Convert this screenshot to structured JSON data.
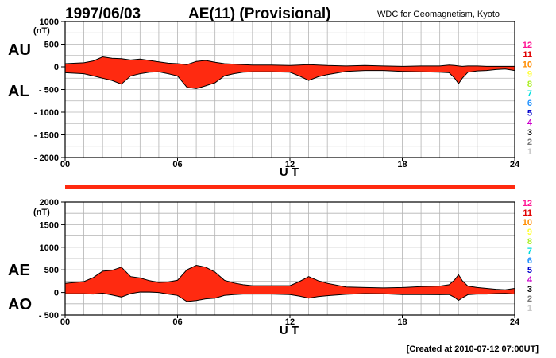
{
  "header": {
    "date": "1997/06/03",
    "title": "AE(11) (Provisional)",
    "source": "WDC for Geomagnetism, Kyoto"
  },
  "footer": {
    "created": "[Created at 2010-07-12 07:00UT]"
  },
  "colors": {
    "fill": "#ff2a10",
    "grid": "#b4b4b4",
    "axis": "#000000",
    "coverage_bar": "#ff2a10"
  },
  "station_legend": [
    {
      "label": "12",
      "color": "#ff1493"
    },
    {
      "label": "11",
      "color": "#e00000"
    },
    {
      "label": "10",
      "color": "#ff8c00"
    },
    {
      "label": "9",
      "color": "#ffff33"
    },
    {
      "label": "8",
      "color": "#aaee22"
    },
    {
      "label": "7",
      "color": "#00dddd"
    },
    {
      "label": "6",
      "color": "#1e90ff"
    },
    {
      "label": "5",
      "color": "#0000cc"
    },
    {
      "label": "4",
      "color": "#cc00cc"
    },
    {
      "label": "3",
      "color": "#000000"
    },
    {
      "label": "2",
      "color": "#777777"
    },
    {
      "label": "1",
      "color": "#c8c8c8"
    }
  ],
  "chart_data": [
    {
      "type": "area",
      "panel": "AU-AL",
      "series_labels": [
        "AU",
        "AL"
      ],
      "unit_label": "(nT)",
      "xlabel": "U T",
      "ylim": [
        -2000,
        1000
      ],
      "yticks": [
        1000,
        500,
        0,
        -500,
        -1000,
        -1500,
        -2000
      ],
      "ytick_labels": [
        "1000",
        "500",
        "0",
        "- 500",
        "- 1000",
        "- 1500",
        "- 2000"
      ],
      "xlim": [
        0,
        24
      ],
      "xticks": [
        0,
        6,
        12,
        18,
        24
      ],
      "xtick_labels": [
        "00",
        "06",
        "12",
        "18",
        "24"
      ],
      "grid": true,
      "x": [
        0,
        1,
        1.5,
        2,
        2.5,
        3,
        3.5,
        4,
        4.5,
        5,
        5.5,
        6,
        6.5,
        7,
        7.5,
        8,
        8.5,
        9,
        9.5,
        10,
        11,
        12,
        12.5,
        13,
        13.5,
        14,
        15,
        16,
        17,
        18,
        19,
        20,
        20.5,
        20.8,
        21,
        21.2,
        21.5,
        22,
        22.5,
        23,
        23.5,
        24
      ],
      "AU": [
        70,
        90,
        130,
        220,
        190,
        180,
        150,
        170,
        140,
        110,
        80,
        70,
        50,
        120,
        140,
        100,
        70,
        60,
        50,
        40,
        40,
        30,
        40,
        50,
        40,
        30,
        20,
        30,
        20,
        10,
        20,
        20,
        40,
        30,
        20,
        10,
        20,
        20,
        10,
        10,
        10,
        10
      ],
      "AL": [
        -130,
        -150,
        -200,
        -250,
        -300,
        -380,
        -200,
        -150,
        -120,
        -110,
        -150,
        -200,
        -450,
        -480,
        -420,
        -350,
        -200,
        -150,
        -120,
        -110,
        -110,
        -120,
        -200,
        -300,
        -220,
        -170,
        -100,
        -80,
        -80,
        -100,
        -110,
        -120,
        -130,
        -250,
        -370,
        -250,
        -120,
        -90,
        -80,
        -60,
        -50,
        -80
      ]
    },
    {
      "type": "area",
      "panel": "AE-AO",
      "series_labels": [
        "AE",
        "AO"
      ],
      "unit_label": "(nT)",
      "xlabel": "U T",
      "ylim": [
        -500,
        2000
      ],
      "yticks": [
        2000,
        1500,
        1000,
        500,
        0,
        -500
      ],
      "ytick_labels": [
        "2000",
        "1500",
        "1000",
        "500",
        "0",
        "- 500"
      ],
      "xlim": [
        0,
        24
      ],
      "xticks": [
        0,
        6,
        12,
        18,
        24
      ],
      "xtick_labels": [
        "00",
        "06",
        "12",
        "18",
        "24"
      ],
      "grid": true,
      "x": [
        0,
        1,
        1.5,
        2,
        2.5,
        3,
        3.5,
        4,
        4.5,
        5,
        5.5,
        6,
        6.5,
        7,
        7.5,
        8,
        8.5,
        9,
        9.5,
        10,
        11,
        12,
        12.5,
        13,
        13.5,
        14,
        15,
        16,
        17,
        18,
        19,
        20,
        20.5,
        20.8,
        21,
        21.2,
        21.5,
        22,
        22.5,
        23,
        23.5,
        24
      ],
      "AE": [
        200,
        240,
        330,
        470,
        490,
        560,
        350,
        320,
        260,
        220,
        230,
        270,
        500,
        600,
        560,
        450,
        270,
        210,
        170,
        150,
        150,
        150,
        240,
        350,
        260,
        200,
        120,
        110,
        100,
        110,
        130,
        140,
        170,
        280,
        390,
        260,
        140,
        110,
        90,
        70,
        60,
        90
      ],
      "AO": [
        -30,
        -30,
        -35,
        -15,
        -55,
        -100,
        -25,
        10,
        10,
        0,
        -35,
        -65,
        -200,
        -180,
        -140,
        -125,
        -65,
        -45,
        -35,
        -35,
        -35,
        -45,
        -80,
        -125,
        -90,
        -70,
        -40,
        -25,
        -30,
        -45,
        -45,
        -50,
        -45,
        -110,
        -175,
        -120,
        -50,
        -35,
        -35,
        -25,
        -20,
        -35
      ]
    }
  ]
}
